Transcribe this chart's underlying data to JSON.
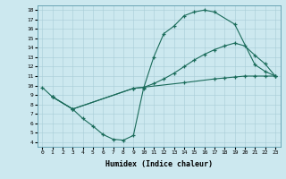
{
  "xlabel": "Humidex (Indice chaleur)",
  "bg_color": "#cce8ef",
  "line_color": "#1a6b5a",
  "xlim": [
    -0.5,
    23.5
  ],
  "ylim": [
    3.5,
    18.5
  ],
  "xticks": [
    0,
    1,
    2,
    3,
    4,
    5,
    6,
    7,
    8,
    9,
    10,
    11,
    12,
    13,
    14,
    15,
    16,
    17,
    18,
    19,
    20,
    21,
    22,
    23
  ],
  "yticks": [
    4,
    5,
    6,
    7,
    8,
    9,
    10,
    11,
    12,
    13,
    14,
    15,
    16,
    17,
    18
  ],
  "line1_x": [
    0,
    1,
    3,
    4,
    5,
    6,
    7,
    8,
    9,
    10,
    11,
    12,
    13,
    14,
    15,
    16,
    17,
    19,
    21,
    22,
    23
  ],
  "line1_y": [
    9.8,
    8.8,
    7.5,
    6.5,
    5.7,
    4.8,
    4.3,
    4.2,
    4.7,
    9.7,
    13.0,
    15.5,
    16.3,
    17.4,
    17.8,
    18.0,
    17.8,
    16.5,
    12.2,
    11.5,
    11.0
  ],
  "line2_x": [
    1,
    3,
    9,
    10,
    11,
    12,
    13,
    14,
    15,
    16,
    17,
    18,
    19,
    20,
    21,
    22,
    23
  ],
  "line2_y": [
    8.8,
    7.5,
    9.7,
    9.8,
    10.2,
    10.7,
    11.3,
    12.0,
    12.7,
    13.3,
    13.8,
    14.2,
    14.5,
    14.2,
    13.2,
    12.3,
    11.0
  ],
  "line3_x": [
    1,
    3,
    9,
    14,
    17,
    18,
    19,
    20,
    21,
    22,
    23
  ],
  "line3_y": [
    8.8,
    7.5,
    9.7,
    10.3,
    10.7,
    10.8,
    10.9,
    11.0,
    11.0,
    11.0,
    11.0
  ]
}
